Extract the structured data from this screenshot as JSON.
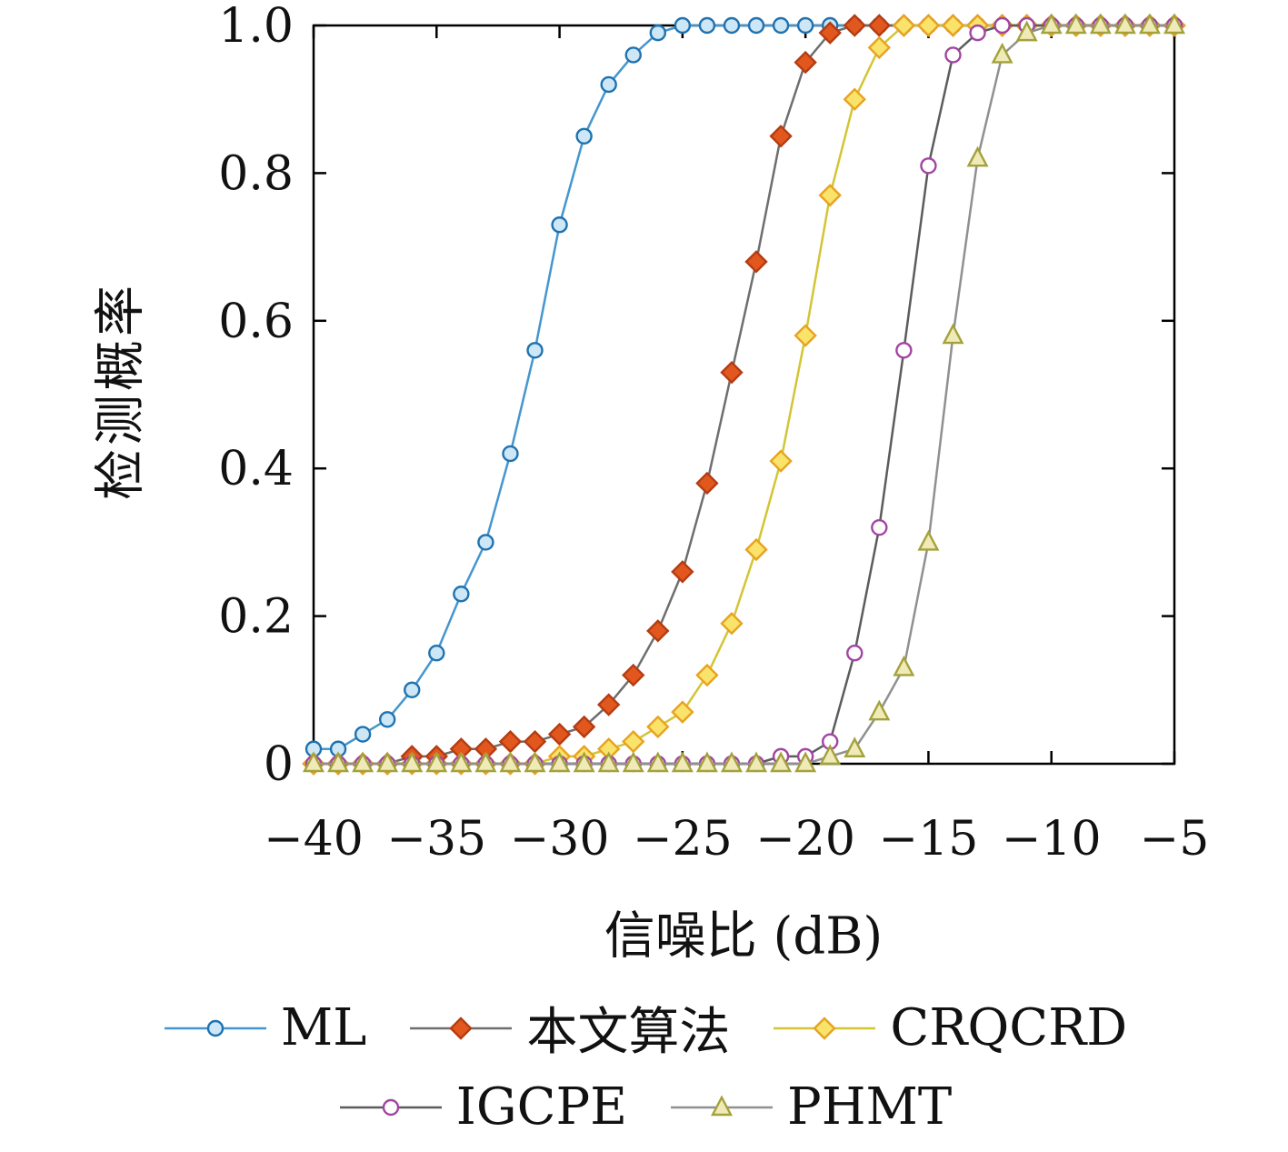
{
  "chart_data": {
    "type": "line",
    "title": "",
    "xlabel": "信噪比 (dB)",
    "ylabel": "检测概率",
    "xlim": [
      -40,
      -5
    ],
    "ylim": [
      0,
      1
    ],
    "grid": false,
    "legend_position": "below",
    "x_ticks": [
      -40,
      -35,
      -30,
      -25,
      -20,
      -15,
      -10,
      -5
    ],
    "x_tick_labels": [
      "−40",
      "−35",
      "−30",
      "−25",
      "−20",
      "−15",
      "−10",
      "−5"
    ],
    "y_ticks": [
      0,
      0.2,
      0.4,
      0.6,
      0.8,
      1
    ],
    "y_tick_labels": [
      "0",
      "0.2",
      "0.4",
      "0.6",
      "0.8",
      "1.0"
    ],
    "x": [
      -40,
      -39,
      -38,
      -37,
      -36,
      -35,
      -34,
      -33,
      -32,
      -31,
      -30,
      -29,
      -28,
      -27,
      -26,
      -25,
      -24,
      -23,
      -22,
      -21,
      -20,
      -19,
      -18,
      -17,
      -16,
      -15,
      -14,
      -13,
      -12,
      -11,
      -10,
      -9,
      -8,
      -7,
      -6,
      -5
    ],
    "series": [
      {
        "name": "ML",
        "marker": "circle",
        "line_color": "#4596cf",
        "marker_fill": "#cde7f6",
        "marker_stroke": "#1f72b0",
        "y": [
          0.02,
          0.02,
          0.04,
          0.06,
          0.1,
          0.15,
          0.23,
          0.3,
          0.42,
          0.56,
          0.73,
          0.85,
          0.92,
          0.96,
          0.99,
          1,
          1,
          1,
          1,
          1,
          1,
          1,
          1,
          1,
          1,
          1,
          1,
          1,
          1,
          1,
          1,
          1,
          1,
          1,
          1,
          1
        ]
      },
      {
        "name": "本文算法",
        "marker": "diamond",
        "line_color": "#6e6e6e",
        "marker_fill": "#e2571e",
        "marker_stroke": "#b43c12",
        "y": [
          0,
          0,
          0,
          0,
          0.01,
          0.01,
          0.02,
          0.02,
          0.03,
          0.03,
          0.04,
          0.05,
          0.08,
          0.12,
          0.18,
          0.26,
          0.38,
          0.53,
          0.68,
          0.85,
          0.95,
          0.99,
          1,
          1,
          1,
          1,
          1,
          1,
          1,
          1,
          1,
          1,
          1,
          1,
          1,
          1
        ]
      },
      {
        "name": "CRQCRD",
        "marker": "diamond",
        "line_color": "#d3c535",
        "marker_fill": "#f9e36a",
        "marker_stroke": "#e8a21f",
        "y": [
          0,
          0,
          0,
          0,
          0,
          0,
          0,
          0,
          0,
          0,
          0.01,
          0.01,
          0.02,
          0.03,
          0.05,
          0.07,
          0.12,
          0.19,
          0.29,
          0.41,
          0.58,
          0.77,
          0.9,
          0.97,
          1,
          1,
          1,
          1,
          1,
          1,
          1,
          1,
          1,
          1,
          1,
          1
        ]
      },
      {
        "name": "IGCPE",
        "marker": "circle",
        "line_color": "#5c5c5c",
        "marker_fill": "#ffffff",
        "marker_stroke": "#a245a2",
        "y": [
          0,
          0,
          0,
          0,
          0,
          0,
          0,
          0,
          0,
          0,
          0,
          0,
          0,
          0,
          0,
          0,
          0,
          0,
          0,
          0.01,
          0.01,
          0.03,
          0.15,
          0.32,
          0.56,
          0.81,
          0.96,
          0.99,
          1,
          1,
          1,
          1,
          1,
          1,
          1,
          1
        ]
      },
      {
        "name": "PHMT",
        "marker": "triangle",
        "line_color": "#909090",
        "marker_fill": "#efeab8",
        "marker_stroke": "#a3a23a",
        "y": [
          0,
          0,
          0,
          0,
          0,
          0,
          0,
          0,
          0,
          0,
          0,
          0,
          0,
          0,
          0,
          0,
          0,
          0,
          0,
          0,
          0,
          0.01,
          0.02,
          0.07,
          0.13,
          0.3,
          0.58,
          0.82,
          0.96,
          0.99,
          1,
          1,
          1,
          1,
          1,
          1
        ]
      }
    ]
  }
}
